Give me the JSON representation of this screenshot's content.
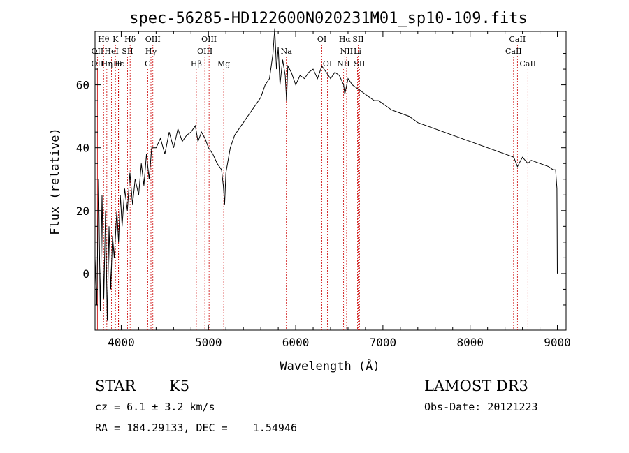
{
  "chart_data": {
    "type": "line",
    "title": "spec-56285-HD122600N020231M01_sp10-109.fits",
    "xlabel": "Wavelength (Å)",
    "ylabel": "Flux (relative)",
    "xlim": [
      3700,
      9100
    ],
    "ylim": [
      -18,
      77
    ],
    "xticks": [
      4000,
      5000,
      6000,
      7000,
      8000,
      9000
    ],
    "yticks": [
      0,
      20,
      40,
      60
    ],
    "grid": false,
    "series": [
      {
        "x": [
          3700,
          3720,
          3740,
          3760,
          3780,
          3800,
          3820,
          3840,
          3860,
          3880,
          3900,
          3920,
          3950,
          3970,
          3990,
          4010,
          4040,
          4070,
          4100,
          4130,
          4160,
          4200,
          4230,
          4260,
          4290,
          4320,
          4350,
          4400,
          4450,
          4500,
          4550,
          4600,
          4650,
          4700,
          4750,
          4800,
          4850,
          4880,
          4920,
          4960,
          5000,
          5050,
          5100,
          5150,
          5170,
          5185,
          5200,
          5250,
          5300,
          5350,
          5400,
          5450,
          5500,
          5550,
          5600,
          5650,
          5700,
          5720,
          5740,
          5760,
          5780,
          5800,
          5820,
          5850,
          5880,
          5895,
          5910,
          5950,
          6000,
          6050,
          6100,
          6150,
          6200,
          6250,
          6300,
          6350,
          6400,
          6450,
          6500,
          6550,
          6563,
          6600,
          6650,
          6700,
          6750,
          6800,
          6850,
          6900,
          6950,
          7000,
          7100,
          7200,
          7300,
          7400,
          7500,
          7600,
          7700,
          7800,
          7900,
          8000,
          8100,
          8200,
          8300,
          8400,
          8500,
          8542,
          8600,
          8662,
          8700,
          8800,
          8900,
          8950,
          8980,
          8995,
          9000
        ],
        "y": [
          5,
          -10,
          30,
          -12,
          25,
          -8,
          20,
          -15,
          15,
          -5,
          12,
          5,
          20,
          10,
          25,
          15,
          27,
          20,
          32,
          22,
          30,
          25,
          35,
          28,
          38,
          30,
          40,
          40,
          43,
          38,
          45,
          40,
          46,
          42,
          44,
          45,
          47,
          42,
          45,
          43,
          40,
          38,
          35,
          33,
          28,
          22,
          32,
          40,
          44,
          46,
          48,
          50,
          52,
          54,
          56,
          60,
          62,
          66,
          70,
          78,
          65,
          72,
          60,
          68,
          63,
          55,
          66,
          64,
          60,
          63,
          62,
          64,
          65,
          62,
          66,
          64,
          62,
          64,
          63,
          60,
          57,
          62,
          60,
          59,
          58,
          57,
          56,
          55,
          55,
          54,
          52,
          51,
          50,
          48,
          47,
          46,
          45,
          44,
          43,
          42,
          41,
          40,
          39,
          38,
          37,
          34,
          37,
          35,
          36,
          35,
          34,
          33,
          33,
          27,
          0
        ]
      }
    ],
    "annotations": [
      {
        "label": "Hθ",
        "x": 3798,
        "row": 1
      },
      {
        "label": "K",
        "x": 3934,
        "row": 1
      },
      {
        "label": "Hδ",
        "x": 4102,
        "row": 1
      },
      {
        "label": "OIII",
        "x": 4363,
        "row": 1
      },
      {
        "label": "OIII",
        "x": 5007,
        "row": 1
      },
      {
        "label": "OI",
        "x": 6300,
        "row": 1
      },
      {
        "label": "Hα",
        "x": 6563,
        "row": 1
      },
      {
        "label": "SII",
        "x": 6716,
        "row": 1
      },
      {
        "label": "CaII",
        "x": 8542,
        "row": 1
      },
      {
        "label": "OII",
        "x": 3727,
        "row": 2
      },
      {
        "label": "HeI",
        "x": 3889,
        "row": 2
      },
      {
        "label": "SII",
        "x": 4072,
        "row": 2
      },
      {
        "label": "Hγ",
        "x": 4341,
        "row": 2
      },
      {
        "label": "OIII",
        "x": 4959,
        "row": 2
      },
      {
        "label": "Na",
        "x": 5893,
        "row": 2
      },
      {
        "label": "NII",
        "x": 6584,
        "row": 2
      },
      {
        "label": "Li",
        "x": 6708,
        "row": 2
      },
      {
        "label": "CaII",
        "x": 8498,
        "row": 2
      },
      {
        "label": "OII",
        "x": 3727,
        "row": 3
      },
      {
        "label": "Hε",
        "x": 3970,
        "row": 3
      },
      {
        "label": "Hη",
        "x": 3835,
        "row": 3
      },
      {
        "label": "H",
        "x": 3968,
        "row": 3
      },
      {
        "label": "G",
        "x": 4304,
        "row": 3
      },
      {
        "label": "Hβ",
        "x": 4861,
        "row": 3
      },
      {
        "label": "Mg",
        "x": 5175,
        "row": 3
      },
      {
        "label": "OI",
        "x": 6364,
        "row": 3
      },
      {
        "label": "NII",
        "x": 6548,
        "row": 3
      },
      {
        "label": "SII",
        "x": 6731,
        "row": 3
      },
      {
        "label": "CaII",
        "x": 8662,
        "row": 3
      }
    ],
    "line_color": "#000000",
    "marker_color": "#cc0000"
  },
  "info": {
    "object_class": "STAR",
    "subclass": "K5",
    "survey": "LAMOST DR3",
    "cz": "cz = 6.1 ± 3.2 km/s",
    "obs_date": "Obs-Date: 20121223",
    "radec": "RA = 184.29133, DEC =    1.54946"
  }
}
